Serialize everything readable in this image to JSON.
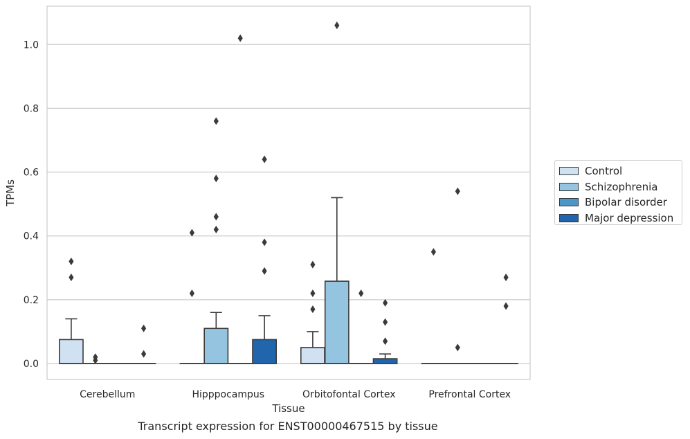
{
  "caption": "Transcript expression for ENST00000467515 by tissue",
  "chart_data": {
    "type": "boxplot",
    "title": "",
    "xlabel": "Tissue",
    "ylabel": "TPMs",
    "ylim": [
      -0.05,
      1.12
    ],
    "yticks": [
      0.0,
      0.2,
      0.4,
      0.6,
      0.8,
      1.0
    ],
    "ytick_labels": [
      "0.0",
      "0.2",
      "0.4",
      "0.6",
      "0.8",
      "1.0"
    ],
    "categories": [
      "Cerebellum",
      "Hipppocampus",
      "Orbitofontal Cortex",
      "Prefrontal Cortex"
    ],
    "grid": "horizontal",
    "legend_position": "right",
    "series": [
      {
        "name": "Control",
        "color": "#d0e1f2",
        "boxes": [
          {
            "q1": 0.0,
            "median": 0.0,
            "q3": 0.075,
            "whislo": 0.0,
            "whishi": 0.14,
            "fliers": [
              0.32,
              0.27
            ]
          },
          {
            "q1": 0.0,
            "median": 0.0,
            "q3": 0.0,
            "whislo": 0.0,
            "whishi": 0.0,
            "fliers": [
              0.41,
              0.22
            ]
          },
          {
            "q1": 0.0,
            "median": 0.0,
            "q3": 0.05,
            "whislo": 0.0,
            "whishi": 0.1,
            "fliers": [
              0.31,
              0.22,
              0.17
            ]
          },
          {
            "q1": 0.0,
            "median": 0.0,
            "q3": 0.0,
            "whislo": 0.0,
            "whishi": 0.0,
            "fliers": [
              0.35
            ]
          }
        ]
      },
      {
        "name": "Schizophrenia",
        "color": "#94c4df",
        "boxes": [
          {
            "q1": 0.0,
            "median": 0.0,
            "q3": 0.0,
            "whislo": 0.0,
            "whishi": 0.0,
            "fliers": [
              0.02,
              0.01
            ]
          },
          {
            "q1": 0.0,
            "median": 0.0,
            "q3": 0.11,
            "whislo": 0.0,
            "whishi": 0.16,
            "fliers": [
              0.76,
              0.46,
              0.58,
              0.42
            ]
          },
          {
            "q1": 0.0,
            "median": 0.0,
            "q3": 0.258,
            "whislo": 0.0,
            "whishi": 0.52,
            "fliers": [
              1.06
            ]
          },
          {
            "q1": 0.0,
            "median": 0.0,
            "q3": 0.0,
            "whislo": 0.0,
            "whishi": 0.0,
            "fliers": [
              0.54,
              0.05
            ]
          }
        ]
      },
      {
        "name": "Bipolar disorder",
        "color": "#4a98c9",
        "boxes": [
          {
            "q1": 0.0,
            "median": 0.0,
            "q3": 0.0,
            "whislo": 0.0,
            "whishi": 0.0,
            "fliers": []
          },
          {
            "q1": 0.0,
            "median": 0.0,
            "q3": 0.0,
            "whislo": 0.0,
            "whishi": 0.0,
            "fliers": [
              1.02
            ]
          },
          {
            "q1": 0.0,
            "median": 0.0,
            "q3": 0.0,
            "whislo": 0.0,
            "whishi": 0.0,
            "fliers": [
              0.22
            ]
          },
          {
            "q1": 0.0,
            "median": 0.0,
            "q3": 0.0,
            "whislo": 0.0,
            "whishi": 0.0,
            "fliers": []
          }
        ]
      },
      {
        "name": "Major depression",
        "color": "#2166ac",
        "boxes": [
          {
            "q1": 0.0,
            "median": 0.0,
            "q3": 0.0,
            "whislo": 0.0,
            "whishi": 0.0,
            "fliers": [
              0.11,
              0.03
            ]
          },
          {
            "q1": 0.0,
            "median": 0.0,
            "q3": 0.075,
            "whislo": 0.0,
            "whishi": 0.15,
            "fliers": [
              0.64,
              0.38,
              0.29
            ]
          },
          {
            "q1": 0.0,
            "median": 0.0,
            "q3": 0.015,
            "whislo": 0.0,
            "whishi": 0.03,
            "fliers": [
              0.19,
              0.13,
              0.07
            ]
          },
          {
            "q1": 0.0,
            "median": 0.0,
            "q3": 0.0,
            "whislo": 0.0,
            "whishi": 0.0,
            "fliers": [
              0.27,
              0.18
            ]
          }
        ]
      }
    ]
  }
}
